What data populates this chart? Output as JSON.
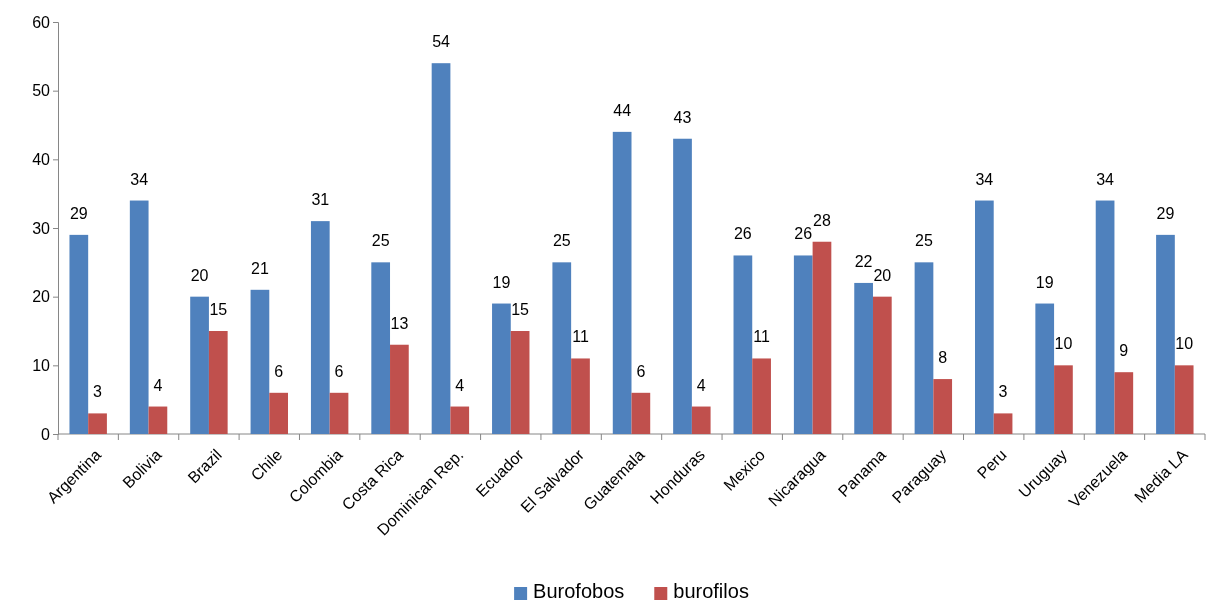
{
  "chart_data": {
    "type": "bar",
    "categories": [
      "Argentina",
      "Bolivia",
      "Brazil",
      "Chile",
      "Colombia",
      "Costa Rica",
      "Dominican Rep.",
      "Ecuador",
      "El Salvador",
      "Guatemala",
      "Honduras",
      "Mexico",
      "Nicaragua",
      "Panama",
      "Paraguay",
      "Peru",
      "Uruguay",
      "Venezuela",
      "Media LA"
    ],
    "series": [
      {
        "name": "Burofobos",
        "color": "#4f81bd",
        "values": [
          29,
          34,
          20,
          21,
          31,
          25,
          54,
          19,
          25,
          44,
          43,
          26,
          26,
          22,
          25,
          34,
          19,
          34,
          29
        ]
      },
      {
        "name": "burofilos",
        "color": "#c0504d",
        "values": [
          3,
          4,
          15,
          6,
          6,
          13,
          4,
          15,
          11,
          6,
          4,
          11,
          28,
          20,
          8,
          3,
          10,
          9,
          10
        ]
      }
    ],
    "ylim": [
      0,
      60
    ],
    "yticks": [
      0,
      10,
      20,
      30,
      40,
      50,
      60
    ],
    "data_labels": true,
    "legend": "bottom"
  }
}
